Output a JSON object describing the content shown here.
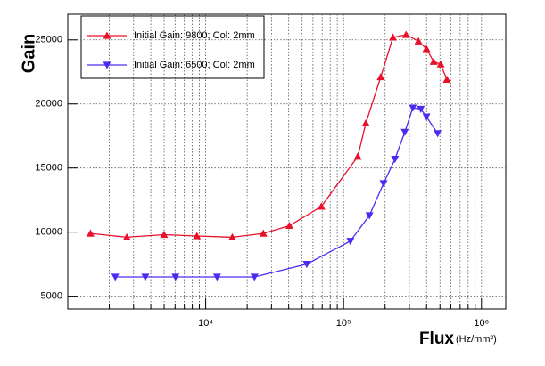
{
  "chart_data": {
    "type": "line",
    "xlabel": "Flux",
    "xlabel_unit": "(Hz/mm²)",
    "ylabel": "Gain",
    "xscale": "log",
    "grid": true,
    "xlim": [
      1000,
      1500000
    ],
    "ylim": [
      4000,
      27000
    ],
    "xticks": [
      {
        "value": 10000,
        "label": "10⁴"
      },
      {
        "value": 100000,
        "label": "10⁵"
      },
      {
        "value": 1000000,
        "label": "10⁶"
      }
    ],
    "xminorticks": [
      2000,
      3000,
      4000,
      5000,
      6000,
      7000,
      8000,
      9000,
      20000,
      30000,
      40000,
      50000,
      60000,
      70000,
      80000,
      90000,
      200000,
      300000,
      400000,
      500000,
      600000,
      700000,
      800000,
      900000
    ],
    "yticks": [
      5000,
      10000,
      15000,
      20000,
      25000
    ],
    "series": [
      {
        "name": "Initial Gain: 9800; Col: 2mm",
        "color": "#e8102a",
        "marker": "triangle-up",
        "x": [
          1460,
          2680,
          4990,
          8630,
          15600,
          26200,
          40500,
          69000,
          126800,
          145000,
          186000,
          228000,
          284000,
          349000,
          399000,
          450000,
          506000,
          561000
        ],
        "values": [
          9900,
          9600,
          9800,
          9700,
          9600,
          9900,
          10500,
          12000,
          15900,
          18500,
          22100,
          25200,
          25400,
          24900,
          24300,
          23300,
          23100,
          21900
        ]
      },
      {
        "name": "Initial Gain: 6500; Col: 2mm",
        "color": "#4a2cf0",
        "marker": "triangle-down",
        "x": [
          2210,
          3650,
          6040,
          12100,
          22600,
          54100,
          112000,
          154000,
          195000,
          236000,
          278000,
          318000,
          363000,
          399000,
          481000
        ],
        "values": [
          6500,
          6500,
          6500,
          6500,
          6500,
          7500,
          9300,
          11300,
          13800,
          15700,
          17800,
          19700,
          19600,
          19000,
          17700
        ]
      }
    ]
  }
}
